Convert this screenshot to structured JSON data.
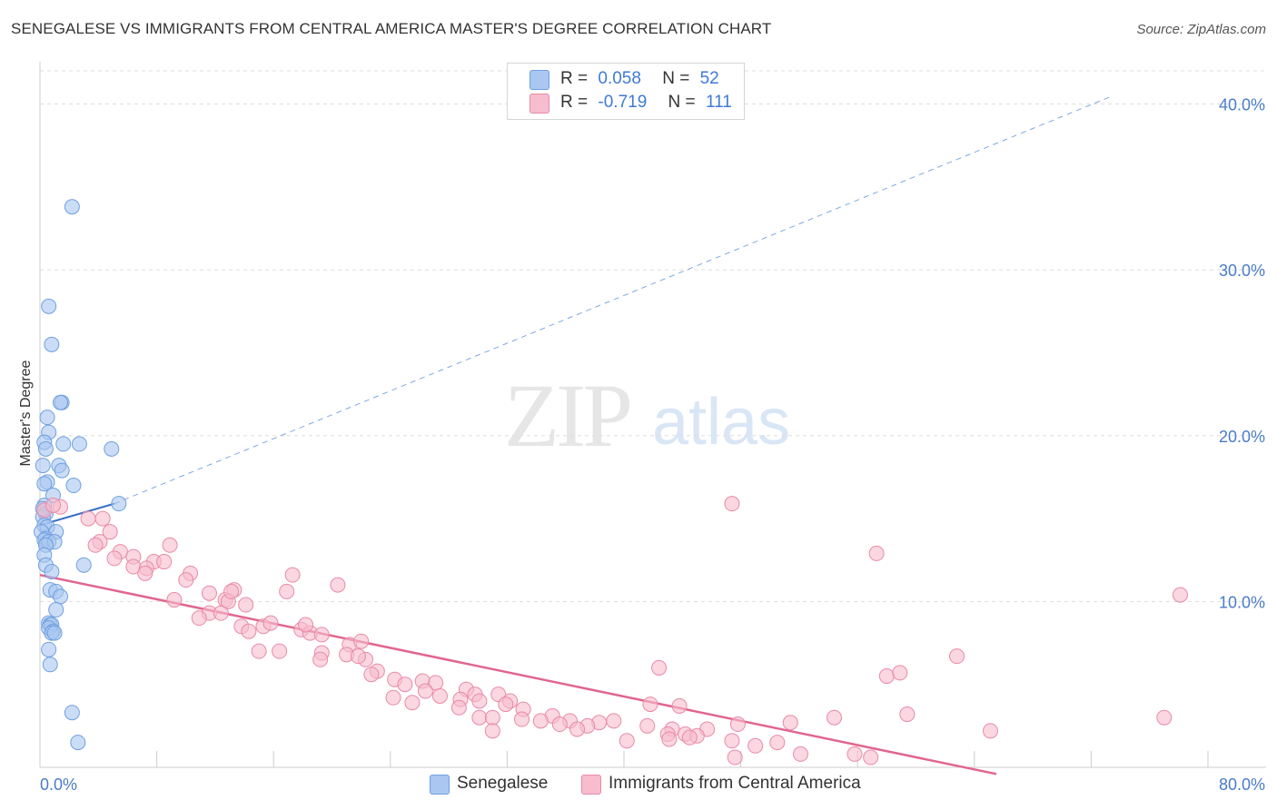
{
  "title": "SENEGALESE VS IMMIGRANTS FROM CENTRAL AMERICA MASTER'S DEGREE CORRELATION CHART",
  "source": "Source: ZipAtlas.com",
  "watermark": {
    "zip": "ZIP",
    "atlas": "atlas"
  },
  "legend": {
    "r_label": "R =",
    "n_label": "N =",
    "rows": [
      {
        "r": "0.058",
        "n": "52",
        "color": "#a9c7f0",
        "border": "#6f9fdf"
      },
      {
        "r": "-0.719",
        "n": "111",
        "color": "#f7bccd",
        "border": "#e98aa8"
      }
    ]
  },
  "chart_data": {
    "type": "scatter",
    "title": "SENEGALESE VS IMMIGRANTS FROM CENTRAL AMERICA MASTER'S DEGREE CORRELATION CHART",
    "xlabel": "",
    "ylabel": "Master's Degree",
    "xlim": [
      0,
      80
    ],
    "ylim": [
      0,
      42
    ],
    "x_tick_labels": [
      "0.0%",
      "80.0%"
    ],
    "y_ticks": [
      10,
      20,
      30,
      40
    ],
    "y_tick_labels": [
      "10.0%",
      "20.0%",
      "30.0%",
      "40.0%"
    ],
    "grid": true,
    "legend_position": "top-center",
    "series": [
      {
        "name": "Senegalese",
        "color": "#a9c7f0",
        "stroke": "#6f9fdf",
        "trend": {
          "x": [
            0,
            5.1
          ],
          "y": [
            14.6,
            15.9
          ],
          "extended_to": [
            73.5,
            40.5
          ],
          "color": "#3a70c9"
        },
        "points": [
          [
            2.2,
            33.8
          ],
          [
            0.6,
            27.8
          ],
          [
            0.8,
            25.5
          ],
          [
            1.5,
            22.0
          ],
          [
            1.4,
            22.0
          ],
          [
            0.5,
            21.1
          ],
          [
            0.6,
            20.2
          ],
          [
            0.3,
            19.6
          ],
          [
            2.7,
            19.5
          ],
          [
            1.6,
            19.5
          ],
          [
            0.4,
            19.2
          ],
          [
            4.9,
            19.2
          ],
          [
            1.3,
            18.2
          ],
          [
            0.2,
            18.2
          ],
          [
            1.5,
            17.9
          ],
          [
            0.5,
            17.2
          ],
          [
            0.3,
            17.1
          ],
          [
            2.3,
            17.0
          ],
          [
            0.9,
            16.4
          ],
          [
            5.4,
            15.9
          ],
          [
            0.3,
            15.8
          ],
          [
            0.4,
            15.3
          ],
          [
            0.2,
            15.1
          ],
          [
            0.3,
            14.6
          ],
          [
            0.5,
            14.5
          ],
          [
            0.1,
            14.2
          ],
          [
            1.1,
            14.2
          ],
          [
            0.4,
            13.8
          ],
          [
            0.3,
            13.7
          ],
          [
            0.6,
            13.6
          ],
          [
            1.0,
            13.6
          ],
          [
            0.4,
            13.4
          ],
          [
            0.3,
            12.8
          ],
          [
            0.4,
            12.2
          ],
          [
            3.0,
            12.2
          ],
          [
            0.8,
            11.8
          ],
          [
            0.7,
            10.7
          ],
          [
            1.1,
            10.6
          ],
          [
            1.4,
            10.3
          ],
          [
            1.1,
            9.5
          ],
          [
            0.6,
            8.7
          ],
          [
            0.7,
            8.6
          ],
          [
            0.8,
            8.6
          ],
          [
            0.6,
            8.4
          ],
          [
            0.9,
            8.2
          ],
          [
            0.8,
            8.1
          ],
          [
            1.0,
            8.1
          ],
          [
            0.6,
            7.1
          ],
          [
            0.7,
            6.2
          ],
          [
            2.2,
            3.3
          ],
          [
            2.6,
            1.5
          ],
          [
            0.2,
            15.6
          ]
        ]
      },
      {
        "name": "Immigrants from Central America",
        "color": "#f7bccd",
        "stroke": "#e98aa8",
        "trend": {
          "x": [
            0,
            65.5
          ],
          "y": [
            11.6,
            -0.4
          ],
          "color": "#e1658f"
        },
        "points": [
          [
            0.3,
            15.5
          ],
          [
            1.4,
            15.7
          ],
          [
            0.9,
            15.8
          ],
          [
            3.3,
            15.0
          ],
          [
            4.3,
            15.0
          ],
          [
            4.8,
            14.2
          ],
          [
            4.1,
            13.6
          ],
          [
            3.8,
            13.4
          ],
          [
            8.9,
            13.4
          ],
          [
            5.5,
            13.0
          ],
          [
            6.4,
            12.7
          ],
          [
            5.1,
            12.6
          ],
          [
            7.8,
            12.4
          ],
          [
            8.5,
            12.4
          ],
          [
            6.4,
            12.1
          ],
          [
            7.3,
            12.0
          ],
          [
            10.3,
            11.7
          ],
          [
            10.0,
            11.3
          ],
          [
            7.2,
            11.7
          ],
          [
            17.3,
            11.6
          ],
          [
            20.4,
            11.0
          ],
          [
            11.6,
            10.5
          ],
          [
            13.3,
            10.7
          ],
          [
            16.9,
            10.6
          ],
          [
            9.2,
            10.1
          ],
          [
            12.7,
            10.1
          ],
          [
            14.1,
            9.8
          ],
          [
            11.6,
            9.3
          ],
          [
            12.4,
            9.3
          ],
          [
            10.9,
            9.0
          ],
          [
            13.8,
            8.5
          ],
          [
            15.3,
            8.5
          ],
          [
            15.8,
            8.7
          ],
          [
            14.3,
            8.2
          ],
          [
            17.9,
            8.3
          ],
          [
            18.5,
            8.1
          ],
          [
            19.3,
            8.0
          ],
          [
            21.2,
            7.4
          ],
          [
            15.0,
            7.0
          ],
          [
            16.4,
            7.0
          ],
          [
            19.3,
            6.9
          ],
          [
            21.0,
            6.8
          ],
          [
            19.2,
            6.5
          ],
          [
            22.3,
            6.5
          ],
          [
            21.8,
            6.7
          ],
          [
            23.1,
            5.8
          ],
          [
            22.7,
            5.6
          ],
          [
            24.3,
            5.3
          ],
          [
            26.2,
            5.2
          ],
          [
            27.1,
            5.1
          ],
          [
            25.0,
            5.0
          ],
          [
            29.2,
            4.7
          ],
          [
            26.4,
            4.6
          ],
          [
            29.8,
            4.4
          ],
          [
            27.4,
            4.3
          ],
          [
            28.8,
            4.1
          ],
          [
            24.2,
            4.2
          ],
          [
            31.4,
            4.4
          ],
          [
            32.2,
            4.0
          ],
          [
            30.1,
            4.0
          ],
          [
            25.5,
            3.9
          ],
          [
            31.9,
            3.8
          ],
          [
            28.7,
            3.6
          ],
          [
            33.1,
            3.5
          ],
          [
            30.1,
            3.0
          ],
          [
            31.0,
            3.0
          ],
          [
            35.1,
            3.1
          ],
          [
            33.0,
            2.9
          ],
          [
            34.3,
            2.8
          ],
          [
            36.3,
            2.8
          ],
          [
            38.3,
            2.7
          ],
          [
            39.3,
            2.8
          ],
          [
            37.5,
            2.5
          ],
          [
            35.6,
            2.6
          ],
          [
            36.8,
            2.3
          ],
          [
            31.0,
            2.2
          ],
          [
            41.6,
            2.5
          ],
          [
            43.3,
            2.3
          ],
          [
            45.7,
            2.3
          ],
          [
            44.2,
            2.0
          ],
          [
            43.0,
            2.0
          ],
          [
            45.0,
            1.9
          ],
          [
            44.5,
            1.8
          ],
          [
            40.2,
            1.6
          ],
          [
            47.4,
            1.6
          ],
          [
            43.1,
            1.7
          ],
          [
            49.0,
            1.3
          ],
          [
            50.5,
            1.5
          ],
          [
            52.1,
            0.8
          ],
          [
            55.8,
            0.8
          ],
          [
            47.6,
            0.6
          ],
          [
            56.9,
            0.6
          ],
          [
            41.8,
            3.8
          ],
          [
            43.8,
            3.7
          ],
          [
            47.8,
            2.6
          ],
          [
            51.4,
            2.7
          ],
          [
            54.4,
            3.0
          ],
          [
            59.4,
            3.2
          ],
          [
            58.0,
            5.5
          ],
          [
            58.9,
            5.7
          ],
          [
            62.8,
            6.7
          ],
          [
            42.4,
            6.0
          ],
          [
            47.4,
            15.9
          ],
          [
            57.3,
            12.9
          ],
          [
            78.1,
            10.4
          ],
          [
            77.0,
            3.0
          ],
          [
            65.1,
            2.2
          ],
          [
            12.9,
            10.0
          ],
          [
            13.1,
            10.6
          ],
          [
            18.2,
            8.6
          ],
          [
            22.0,
            7.6
          ]
        ]
      }
    ]
  },
  "bottom_legend": [
    {
      "label": "Senegalese",
      "color": "#a9c7f0",
      "border": "#6f9fdf"
    },
    {
      "label": "Immigrants from Central America",
      "color": "#f7bccd",
      "border": "#e98aa8"
    }
  ]
}
